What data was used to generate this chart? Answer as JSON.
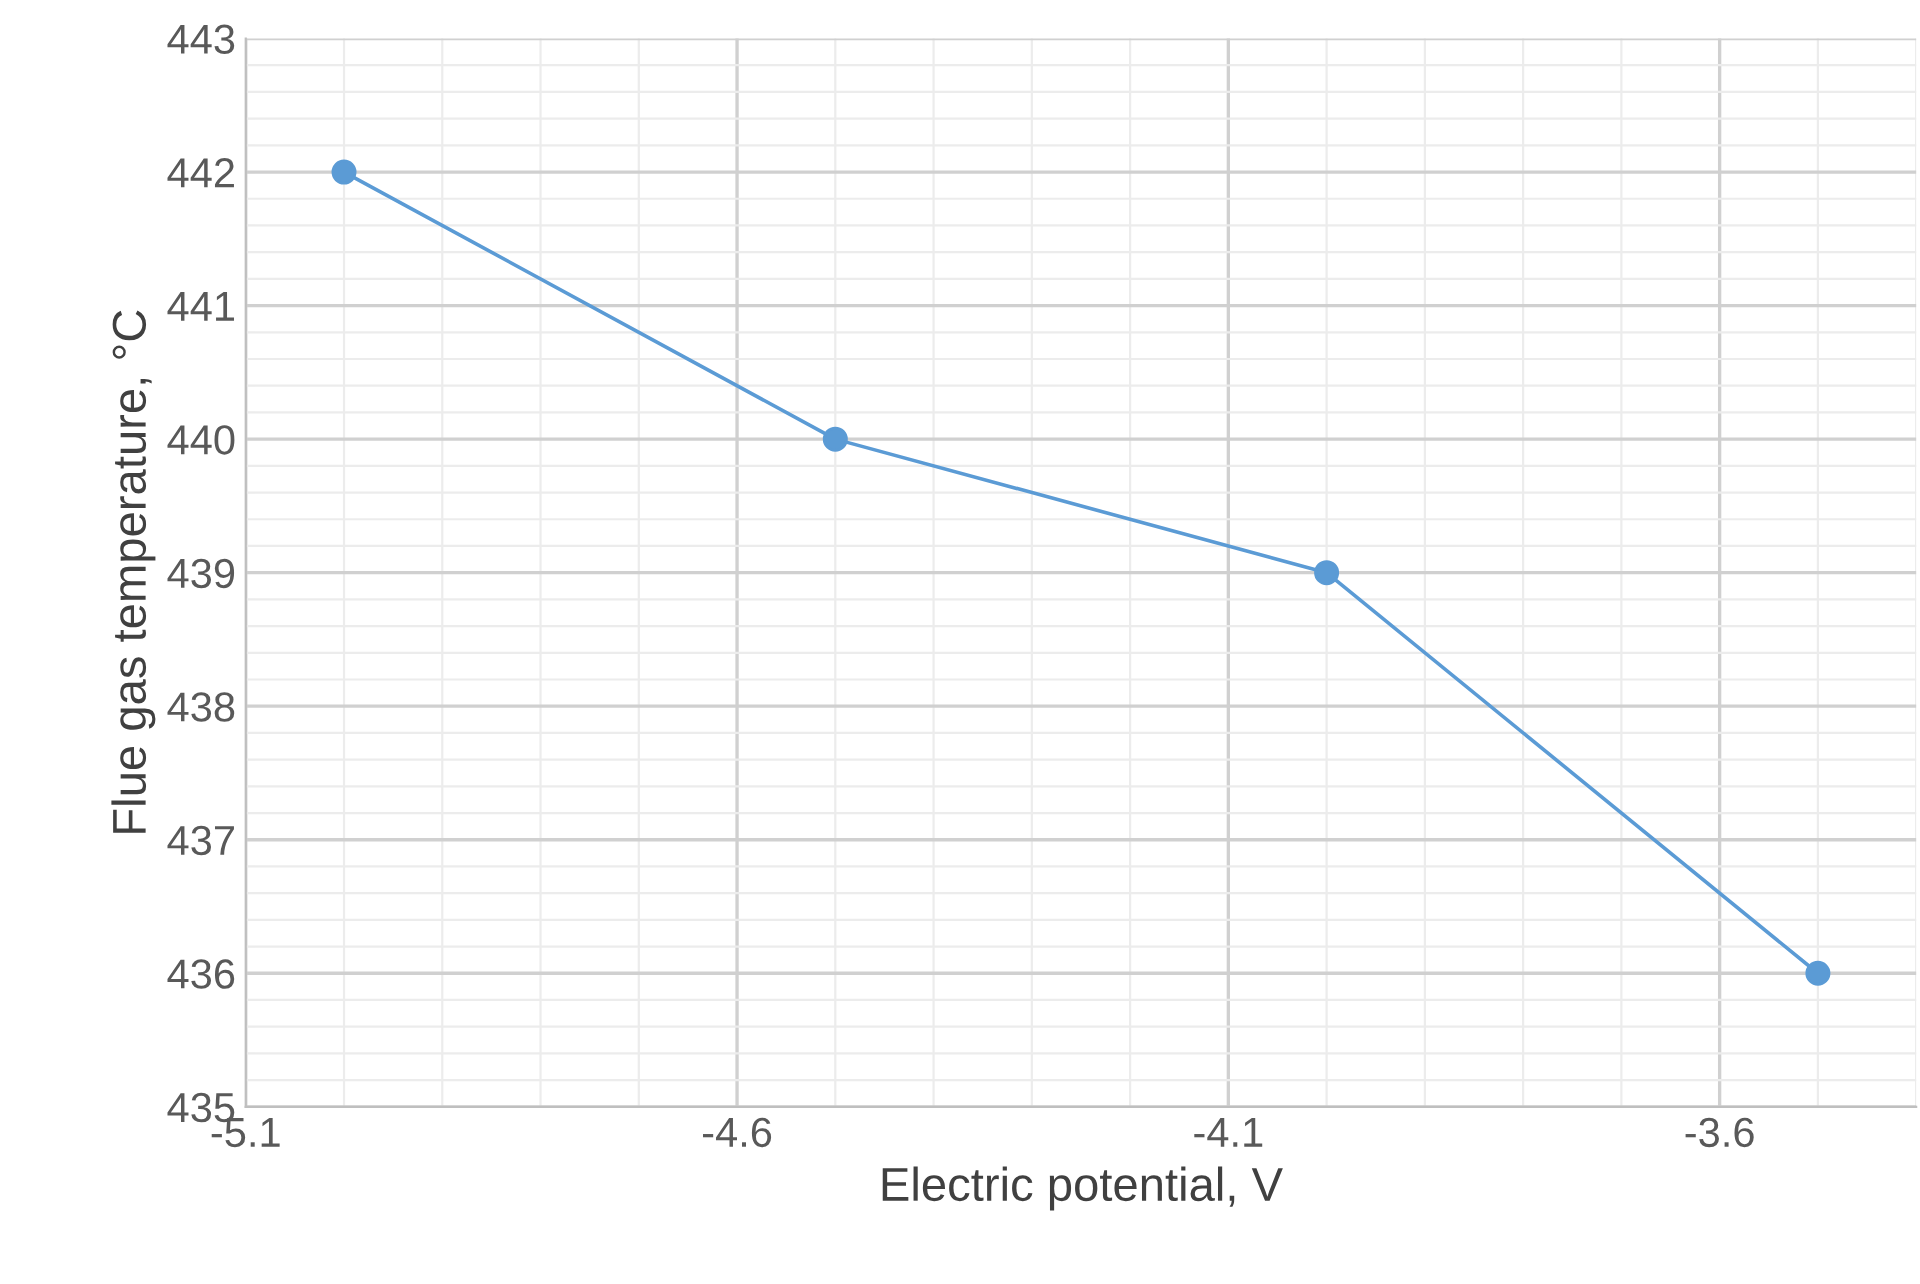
{
  "chart_data": {
    "type": "line",
    "xlabel": "Electric potential, V",
    "ylabel": "Flue gas temperature, °C",
    "x": [
      -5.0,
      -4.5,
      -4.0,
      -3.5
    ],
    "series": [
      {
        "color": "#5b9bd5",
        "values": [
          442,
          440,
          439,
          436
        ]
      }
    ],
    "xlim": [
      -5.1,
      -3.4
    ],
    "xticks": [
      -5.1,
      -4.6,
      -4.1,
      -3.6
    ],
    "ylim": [
      435,
      443
    ],
    "yticks": [
      435,
      436,
      437,
      438,
      439,
      440,
      441,
      442,
      443
    ],
    "grid": true,
    "marker": "circle",
    "line_style": "solid"
  }
}
